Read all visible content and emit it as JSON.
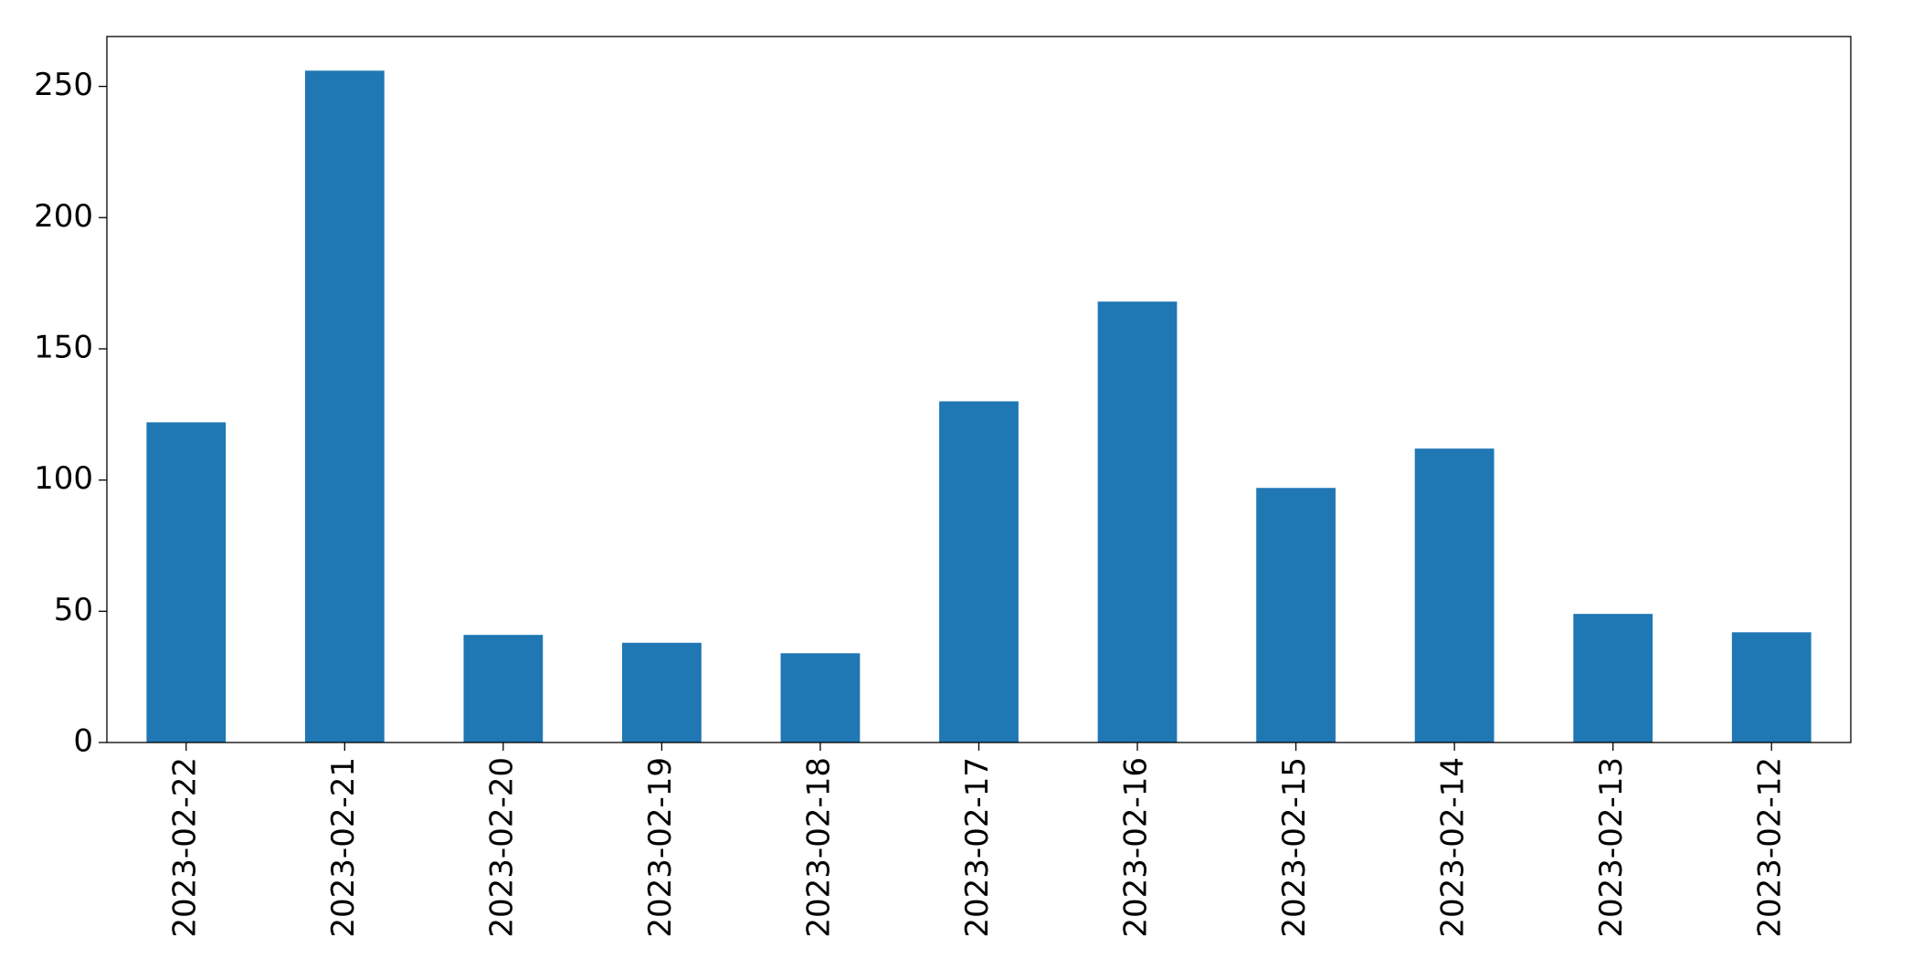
{
  "chart_data": {
    "type": "bar",
    "categories": [
      "2023-02-22",
      "2023-02-21",
      "2023-02-20",
      "2023-02-19",
      "2023-02-18",
      "2023-02-17",
      "2023-02-16",
      "2023-02-15",
      "2023-02-14",
      "2023-02-13",
      "2023-02-12"
    ],
    "values": [
      122,
      256,
      41,
      38,
      34,
      130,
      168,
      97,
      112,
      49,
      42
    ],
    "color": "#1f77b4",
    "ylim": [
      0,
      269
    ],
    "yticks": [
      0,
      50,
      100,
      150,
      200,
      250
    ],
    "grid": false
  }
}
